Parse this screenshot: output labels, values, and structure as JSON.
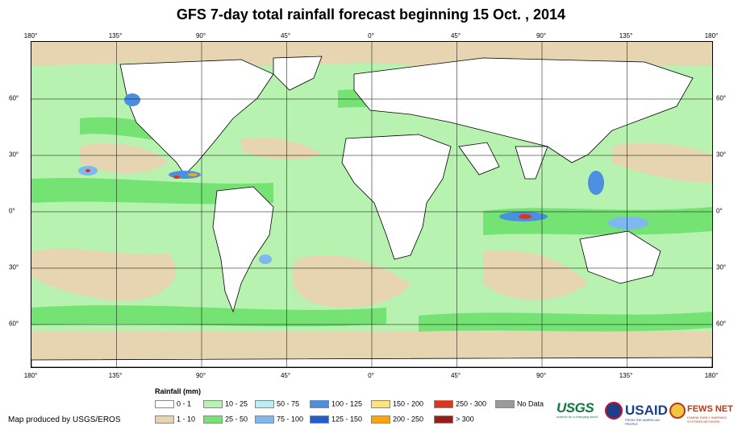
{
  "title": "GFS 7-day total rainfall forecast beginning 15 Oct. , 2014",
  "map": {
    "longitude_ticks": [
      "180°",
      "135°",
      "90°",
      "45°",
      "0°",
      "45°",
      "90°",
      "135°",
      "180°"
    ],
    "latitude_ticks": [
      "60°",
      "30°",
      "0°",
      "30°",
      "60°"
    ],
    "colors": {
      "ocean_rain": "#7de87d",
      "land": "#ffffff",
      "dry": "#e6d5b0",
      "heavy": "#4a8fe0",
      "extreme": "#e0331a",
      "grid": "#000000"
    }
  },
  "legend": {
    "title": "Rainfall (mm)",
    "items": [
      {
        "label": "0 - 1",
        "color": "#ffffff"
      },
      {
        "label": "1 - 10",
        "color": "#e6d5b0"
      },
      {
        "label": "10 - 25",
        "color": "#b7f2b0"
      },
      {
        "label": "25 - 50",
        "color": "#74e374"
      },
      {
        "label": "50 - 75",
        "color": "#b6f0f4"
      },
      {
        "label": "75 - 100",
        "color": "#7fb8f0"
      },
      {
        "label": "100 - 125",
        "color": "#4a8fe0"
      },
      {
        "label": "125 - 150",
        "color": "#1e5fd6"
      },
      {
        "label": "150 - 200",
        "color": "#ffe27a"
      },
      {
        "label": "200 - 250",
        "color": "#ffa500"
      },
      {
        "label": "250 - 300",
        "color": "#e0331a"
      },
      {
        "label": "> 300",
        "color": "#9b1b1b"
      },
      {
        "label": "No Data",
        "color": "#9a9a9a"
      }
    ]
  },
  "credit": "Map produced by USGS/EROS",
  "logos": {
    "usgs": {
      "mark": "USGS",
      "sub": "science for a changing world"
    },
    "usaid": {
      "mark": "USAID",
      "sub": "FROM THE AMERICAN PEOPLE"
    },
    "fews": {
      "mark": "FEWS NET",
      "sub": "FAMINE EARLY WARNING SYSTEMS NETWORK"
    }
  }
}
